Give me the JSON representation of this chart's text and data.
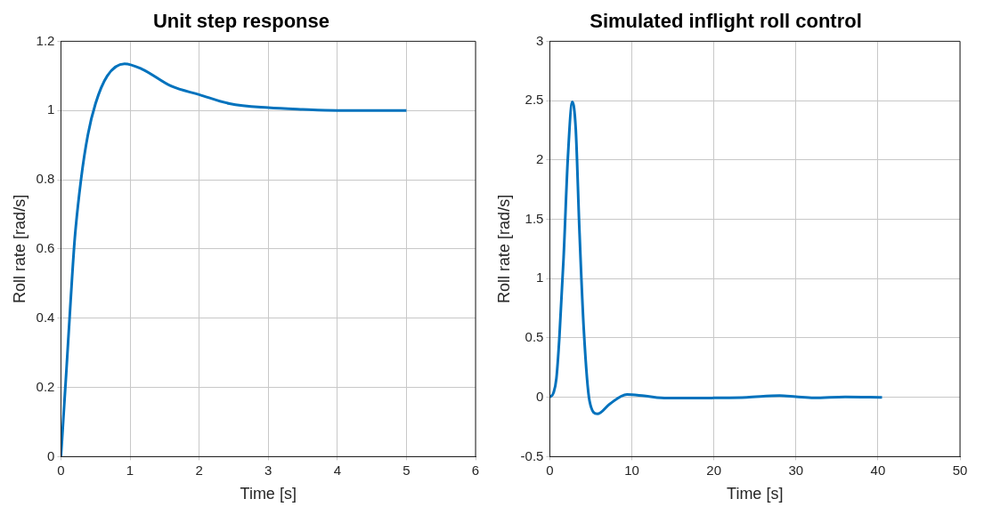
{
  "chart_data": [
    {
      "type": "line",
      "title": "Unit step response",
      "xlabel": "Time [s]",
      "ylabel": "Roll rate [rad/s]",
      "xlim": [
        0,
        6
      ],
      "xticks": [
        0,
        1,
        2,
        3,
        4,
        5,
        6
      ],
      "ylim": [
        0,
        1.2
      ],
      "yticks": [
        0,
        0.2,
        0.4,
        0.6,
        0.8,
        1,
        1.2
      ],
      "grid": true,
      "series": [
        {
          "color": "#0072bd",
          "x": [
            0,
            0.076,
            0.14,
            0.2,
            0.29,
            0.39,
            0.5,
            0.67,
            0.92,
            1.17,
            1.6,
            2.0,
            2.44,
            3.0,
            3.5,
            4.0,
            5.0
          ],
          "values": [
            0,
            0.24,
            0.45,
            0.63,
            0.8,
            0.93,
            1.02,
            1.1,
            1.135,
            1.12,
            1.07,
            1.046,
            1.02,
            1.008,
            1.003,
            1.0,
            1.0
          ]
        }
      ]
    },
    {
      "type": "line",
      "title": "Simulated inflight roll control",
      "xlabel": "Time [s]",
      "ylabel": "Roll rate [rad/s]",
      "xlim": [
        0,
        50
      ],
      "xticks": [
        0,
        10,
        20,
        30,
        40,
        50
      ],
      "ylim": [
        -0.5,
        3
      ],
      "yticks": [
        -0.5,
        0,
        0.5,
        1,
        1.5,
        2,
        2.5,
        3
      ],
      "grid": true,
      "series": [
        {
          "color": "#0072bd",
          "x": [
            0,
            0.46,
            0.8,
            1.16,
            1.68,
            2.2,
            2.74,
            3.16,
            3.6,
            4.14,
            4.84,
            5.8,
            7.3,
            9.4,
            11.5,
            14.3,
            17,
            20,
            24,
            28,
            30,
            32.2,
            36,
            40.5
          ],
          "values": [
            0,
            0.04,
            0.16,
            0.5,
            1.18,
            2.02,
            2.49,
            2.26,
            1.42,
            0.57,
            -0.03,
            -0.14,
            -0.056,
            0.024,
            0.012,
            -0.007,
            -0.007,
            -0.005,
            0,
            0.015,
            0.005,
            -0.005,
            0.003,
            0
          ]
        }
      ]
    }
  ]
}
